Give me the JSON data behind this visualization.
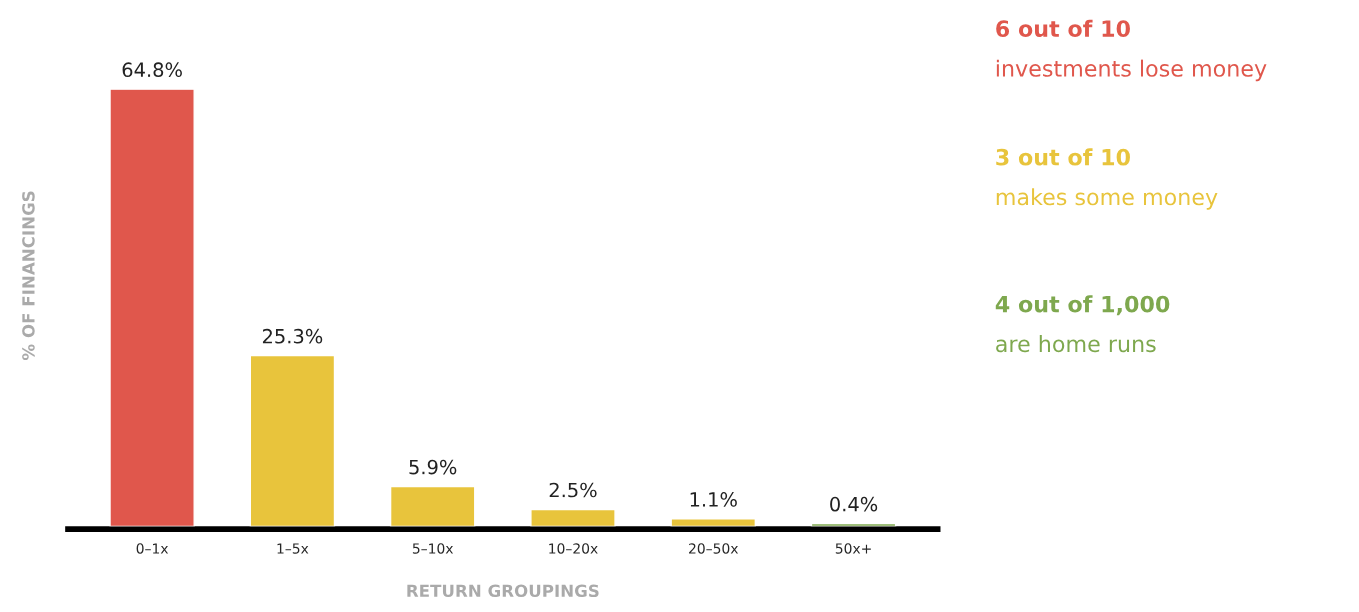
{
  "chart_data": {
    "type": "bar",
    "categories": [
      "0–1x",
      "1–5x",
      "5–10x",
      "10–20x",
      "20–50x",
      "50x+"
    ],
    "values": [
      64.8,
      25.3,
      5.9,
      2.5,
      1.1,
      0.4
    ],
    "colors": [
      "#e0574c",
      "#e8c43c",
      "#e8c43c",
      "#e8c43c",
      "#e8c43c",
      "#7ea84e"
    ],
    "value_labels": [
      "64.8%",
      "25.3%",
      "5.9%",
      "2.5%",
      "1.1%",
      "0.4%"
    ],
    "xlabel": "RETURN GROUPINGS",
    "ylabel": "% OF FINANCINGS",
    "annotations": [
      "6 out of 10",
      "investments lose money",
      "3 out of 10",
      "makes some money",
      "4 out of 1,000",
      "are home runs"
    ],
    "grid": false,
    "legend": false
  }
}
